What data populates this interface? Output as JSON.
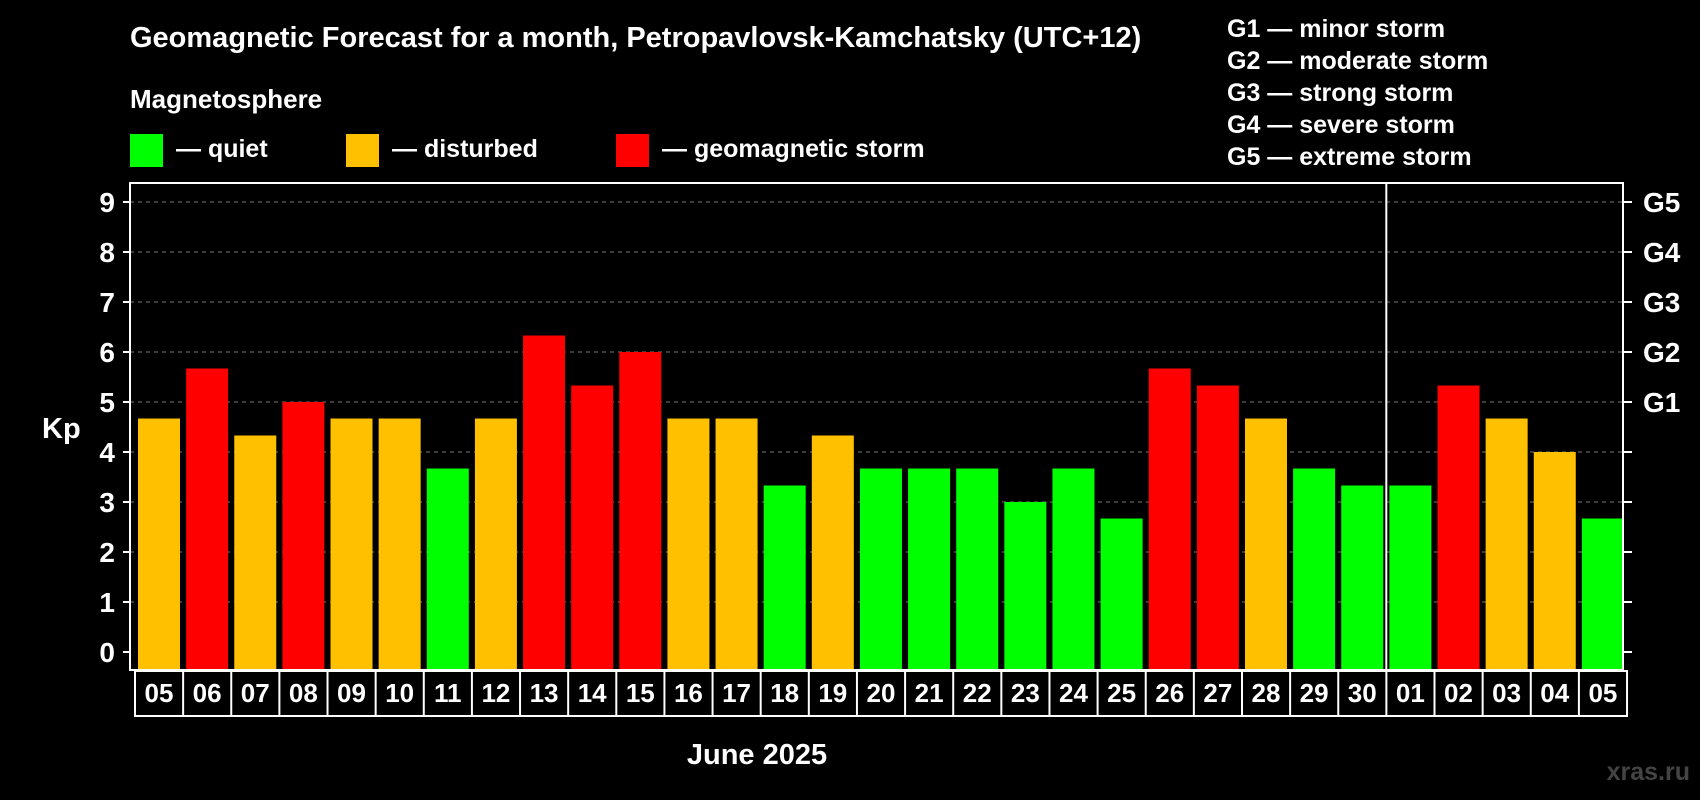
{
  "chart_data": {
    "type": "bar",
    "title": "Geomagnetic Forecast for a month, Petropavlovsk-Kamchatsky (UTC+12)",
    "legend_heading": "Magnetosphere",
    "legend": [
      {
        "label": "— quiet",
        "color": "#00ff00"
      },
      {
        "label": "— disturbed",
        "color": "#ffc000"
      },
      {
        "label": "— geomagnetic storm",
        "color": "#ff0000"
      }
    ],
    "storm_scale": [
      "G1 — minor storm",
      "G2 — moderate storm",
      "G3 — strong storm",
      "G4 — severe storm",
      "G5 — extreme storm"
    ],
    "ylabel": "Kp",
    "xlabel": "June 2025",
    "ylim": [
      0,
      9
    ],
    "yticks": [
      0,
      1,
      2,
      3,
      4,
      5,
      6,
      7,
      8,
      9
    ],
    "right_axis": [
      {
        "kp": 5,
        "label": "G1"
      },
      {
        "kp": 6,
        "label": "G2"
      },
      {
        "kp": 7,
        "label": "G3"
      },
      {
        "kp": 8,
        "label": "G4"
      },
      {
        "kp": 9,
        "label": "G5"
      }
    ],
    "month_divider_after_index": 25,
    "categories": [
      "05",
      "06",
      "07",
      "08",
      "09",
      "10",
      "11",
      "12",
      "13",
      "14",
      "15",
      "16",
      "17",
      "18",
      "19",
      "20",
      "21",
      "22",
      "23",
      "24",
      "25",
      "26",
      "27",
      "28",
      "29",
      "30",
      "01",
      "02",
      "03",
      "04",
      "05"
    ],
    "values": [
      4.67,
      5.67,
      4.33,
      5.0,
      4.67,
      4.67,
      3.67,
      4.67,
      6.33,
      5.33,
      6.0,
      4.67,
      4.67,
      3.33,
      4.33,
      3.67,
      3.67,
      3.67,
      3.0,
      3.67,
      2.67,
      5.67,
      5.33,
      4.67,
      3.67,
      3.33,
      3.33,
      5.33,
      4.67,
      4.0,
      2.67
    ],
    "status": [
      "disturbed",
      "storm",
      "disturbed",
      "storm",
      "disturbed",
      "disturbed",
      "quiet",
      "disturbed",
      "storm",
      "storm",
      "storm",
      "disturbed",
      "disturbed",
      "quiet",
      "disturbed",
      "quiet",
      "quiet",
      "quiet",
      "quiet",
      "quiet",
      "quiet",
      "storm",
      "storm",
      "disturbed",
      "quiet",
      "quiet",
      "quiet",
      "storm",
      "disturbed",
      "disturbed",
      "quiet"
    ],
    "status_colors": {
      "quiet": "#00ff00",
      "disturbed": "#ffc000",
      "storm": "#ff0000"
    },
    "grid": true
  },
  "watermark": "xras.ru"
}
